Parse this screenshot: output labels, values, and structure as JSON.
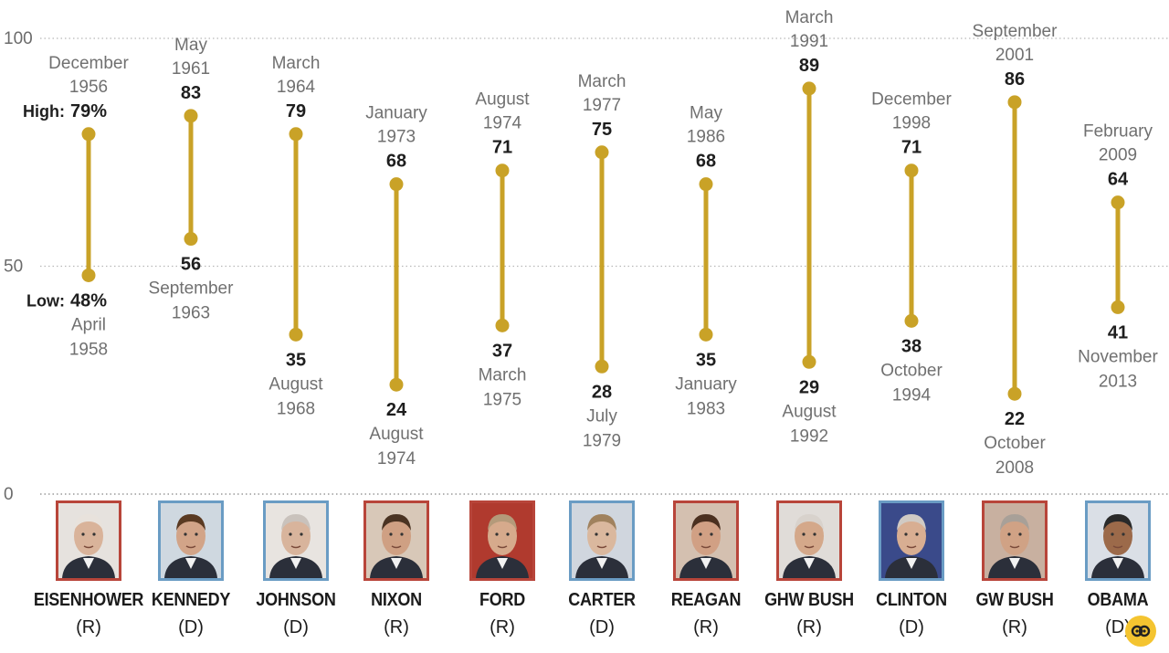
{
  "colors": {
    "range": "#c9a227",
    "republican_border": "#b8453a",
    "democrat_border": "#6a9cc4"
  },
  "labels": {
    "high_prefix": "High:",
    "low_prefix": "Low:"
  },
  "chart_data": {
    "type": "range",
    "ylim": [
      0,
      100
    ],
    "yticks": [
      "100",
      "50",
      "0"
    ],
    "grid": true,
    "percent_suffix_on_first": true,
    "presidents": [
      {
        "name": "EISENHOWER",
        "party": "(R)",
        "high": 79,
        "high_month": "December",
        "high_year": "1956",
        "low": 48,
        "low_month": "April",
        "low_year": "1958"
      },
      {
        "name": "KENNEDY",
        "party": "(D)",
        "high": 83,
        "high_month": "May",
        "high_year": "1961",
        "low": 56,
        "low_month": "September",
        "low_year": "1963"
      },
      {
        "name": "JOHNSON",
        "party": "(D)",
        "high": 79,
        "high_month": "March",
        "high_year": "1964",
        "low": 35,
        "low_month": "August",
        "low_year": "1968"
      },
      {
        "name": "NIXON",
        "party": "(R)",
        "high": 68,
        "high_month": "January",
        "high_year": "1973",
        "low": 24,
        "low_month": "August",
        "low_year": "1974"
      },
      {
        "name": "FORD",
        "party": "(R)",
        "high": 71,
        "high_month": "August",
        "high_year": "1974",
        "low": 37,
        "low_month": "March",
        "low_year": "1975"
      },
      {
        "name": "CARTER",
        "party": "(D)",
        "high": 75,
        "high_month": "March",
        "high_year": "1977",
        "low": 28,
        "low_month": "July",
        "low_year": "1979"
      },
      {
        "name": "REAGAN",
        "party": "(R)",
        "high": 68,
        "high_month": "May",
        "high_year": "1986",
        "low": 35,
        "low_month": "January",
        "low_year": "1983"
      },
      {
        "name": "GHW BUSH",
        "party": "(R)",
        "high": 89,
        "high_month": "March",
        "high_year": "1991",
        "low": 29,
        "low_month": "August",
        "low_year": "1992"
      },
      {
        "name": "CLINTON",
        "party": "(D)",
        "high": 71,
        "high_month": "December",
        "high_year": "1998",
        "low": 38,
        "low_month": "October",
        "low_year": "1994"
      },
      {
        "name": "GW BUSH",
        "party": "(R)",
        "high": 86,
        "high_month": "September",
        "high_year": "2001",
        "low": 22,
        "low_month": "October",
        "low_year": "2008"
      },
      {
        "name": "OBAMA",
        "party": "(D)",
        "high": 64,
        "high_month": "February",
        "high_year": "2009",
        "low": 41,
        "low_month": "November",
        "low_year": "2013"
      }
    ]
  }
}
